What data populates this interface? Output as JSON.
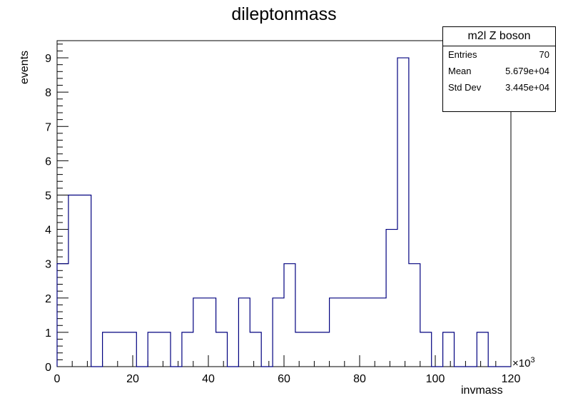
{
  "chart_data": {
    "type": "bar",
    "title": "dileptonmass",
    "xlabel": "invmass",
    "ylabel": "events",
    "x_multiplier_base": "×10",
    "x_multiplier_exp": "3",
    "xlim": [
      0,
      120
    ],
    "ylim": [
      0,
      9.5
    ],
    "bin_edges_start": 0,
    "bin_width": 3,
    "values": [
      3,
      5,
      5,
      0,
      1,
      1,
      1,
      0,
      1,
      1,
      0,
      1,
      2,
      2,
      1,
      0,
      2,
      1,
      0,
      2,
      3,
      1,
      1,
      1,
      2,
      2,
      2,
      2,
      2,
      4,
      9,
      3,
      1,
      0,
      1,
      0,
      0,
      1,
      0,
      0
    ],
    "x_ticks": [
      "0",
      "20",
      "40",
      "60",
      "80",
      "100",
      "120"
    ],
    "y_ticks": [
      "0",
      "1",
      "2",
      "3",
      "4",
      "5",
      "6",
      "7",
      "8",
      "9"
    ],
    "line_color": "#00007f",
    "grid": false
  },
  "stats": {
    "title": "m2l Z boson",
    "rows": [
      {
        "label": "Entries",
        "value": "70"
      },
      {
        "label": "Mean",
        "value": "5.679e+04"
      },
      {
        "label": "Std Dev",
        "value": "3.445e+04"
      }
    ]
  }
}
